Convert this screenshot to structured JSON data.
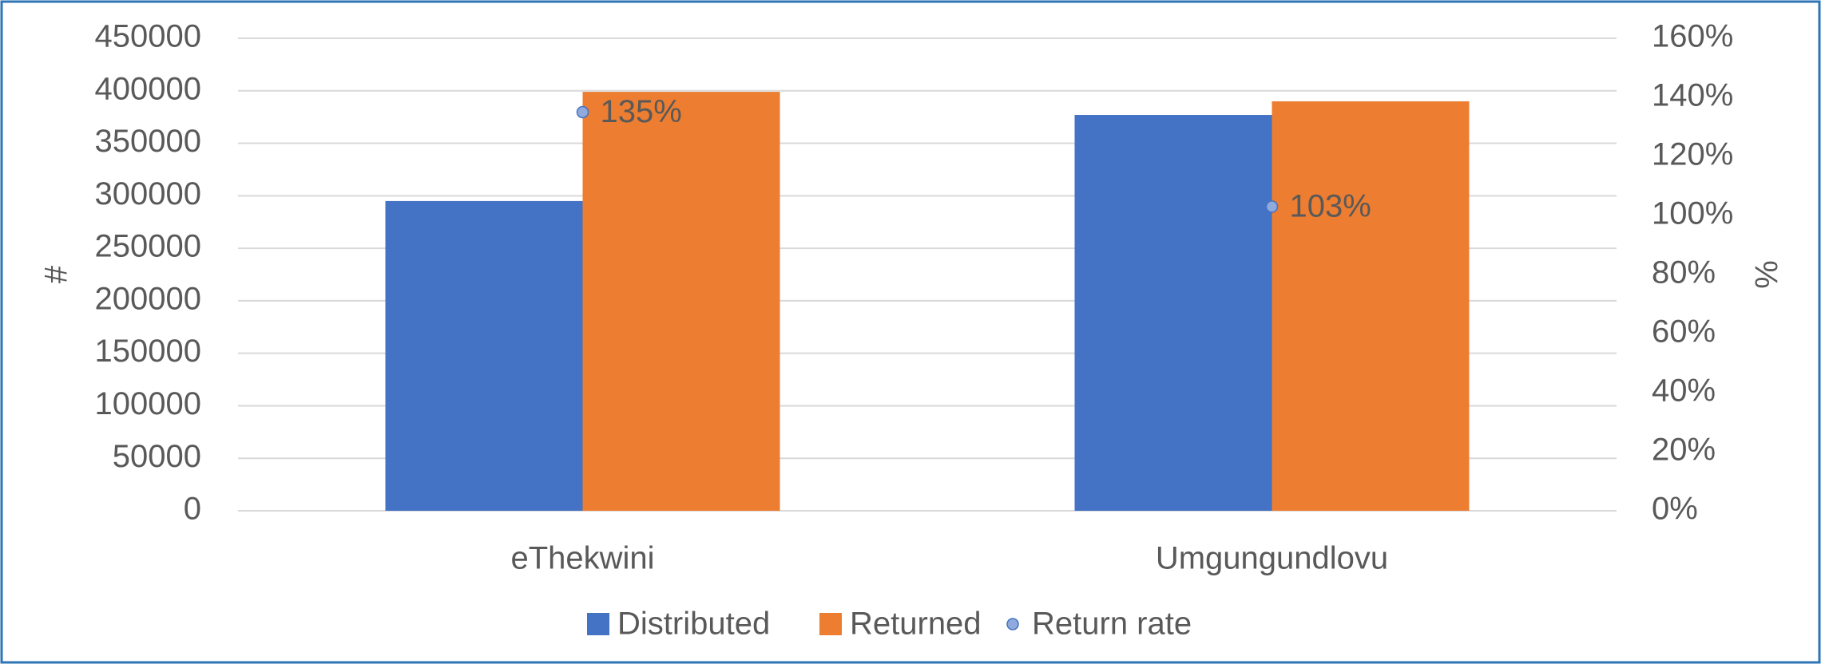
{
  "chart_data": {
    "type": "bar",
    "categories": [
      "eThekwini",
      "Umgungundlovu"
    ],
    "series": [
      {
        "name": "Distributed",
        "color": "#4472c4",
        "values": [
          295000,
          377000
        ]
      },
      {
        "name": "Returned",
        "color": "#ed7d31",
        "values": [
          399000,
          390000
        ]
      },
      {
        "name": "Return rate",
        "color": "#8faadc",
        "type": "scatter",
        "axis": "y2",
        "values": [
          135,
          103
        ],
        "value_labels": [
          "135%",
          "103%"
        ]
      }
    ],
    "ylabel": "#",
    "y2label": "%",
    "ylim": [
      0,
      450000
    ],
    "yticks": [
      0,
      50000,
      100000,
      150000,
      200000,
      250000,
      300000,
      350000,
      400000,
      450000
    ],
    "y2lim": [
      0,
      160
    ],
    "y2ticks": [
      {
        "value": 0,
        "label": "0%"
      },
      {
        "value": 20,
        "label": "20%"
      },
      {
        "value": 40,
        "label": "40%"
      },
      {
        "value": 60,
        "label": "60%"
      },
      {
        "value": 80,
        "label": "80%"
      },
      {
        "value": 100,
        "label": "100%"
      },
      {
        "value": 120,
        "label": "120%"
      },
      {
        "value": 140,
        "label": "140%"
      },
      {
        "value": 160,
        "label": "160%"
      }
    ],
    "grid": true,
    "legend": "bottom"
  }
}
